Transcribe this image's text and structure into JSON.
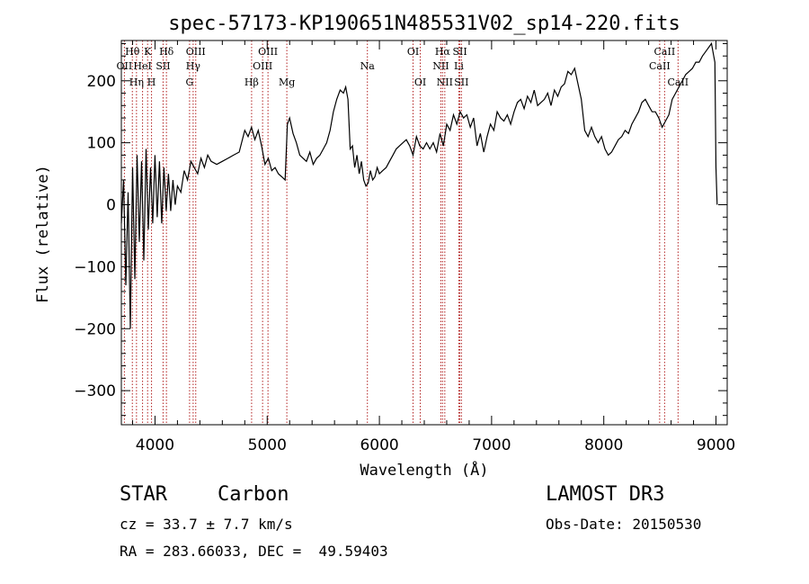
{
  "chart_data": {
    "type": "line",
    "title": "spec-57173-KP190651N485531V02_sp14-220.fits",
    "xlabel": "Wavelength (Å)",
    "ylabel": "Flux (relative)",
    "xlim": [
      3700,
      9100
    ],
    "ylim": [
      -355,
      265
    ],
    "x_ticks": [
      4000,
      5000,
      6000,
      7000,
      8000,
      9000
    ],
    "y_ticks": [
      -300,
      -200,
      -100,
      0,
      100,
      200
    ],
    "grid": false,
    "series": [
      {
        "name": "flux",
        "x": [
          3700,
          3720,
          3740,
          3760,
          3780,
          3800,
          3820,
          3840,
          3860,
          3880,
          3900,
          3920,
          3940,
          3960,
          3980,
          4000,
          4020,
          4040,
          4060,
          4080,
          4100,
          4120,
          4140,
          4160,
          4180,
          4200,
          4230,
          4260,
          4290,
          4320,
          4350,
          4380,
          4410,
          4440,
          4470,
          4500,
          4550,
          4600,
          4650,
          4700,
          4750,
          4800,
          4830,
          4860,
          4890,
          4920,
          4950,
          4980,
          5010,
          5040,
          5070,
          5100,
          5130,
          5160,
          5180,
          5200,
          5230,
          5260,
          5290,
          5320,
          5350,
          5380,
          5410,
          5440,
          5470,
          5500,
          5530,
          5560,
          5590,
          5620,
          5650,
          5680,
          5700,
          5720,
          5740,
          5760,
          5780,
          5800,
          5820,
          5840,
          5860,
          5880,
          5900,
          5920,
          5940,
          5960,
          5980,
          6000,
          6030,
          6060,
          6090,
          6120,
          6150,
          6180,
          6210,
          6240,
          6270,
          6300,
          6330,
          6360,
          6390,
          6420,
          6450,
          6480,
          6510,
          6540,
          6570,
          6600,
          6630,
          6660,
          6690,
          6720,
          6750,
          6780,
          6810,
          6840,
          6870,
          6900,
          6930,
          6960,
          6990,
          7020,
          7050,
          7080,
          7110,
          7140,
          7170,
          7200,
          7230,
          7260,
          7290,
          7320,
          7350,
          7380,
          7410,
          7440,
          7470,
          7500,
          7530,
          7560,
          7590,
          7620,
          7650,
          7680,
          7710,
          7740,
          7770,
          7800,
          7830,
          7860,
          7890,
          7920,
          7950,
          7980,
          8010,
          8040,
          8070,
          8100,
          8130,
          8160,
          8190,
          8220,
          8250,
          8280,
          8310,
          8340,
          8370,
          8400,
          8430,
          8460,
          8490,
          8520,
          8550,
          8580,
          8610,
          8640,
          8670,
          8700,
          8730,
          8760,
          8790,
          8820,
          8850,
          8880,
          8900,
          8920,
          8940,
          8960,
          8980,
          8990,
          9000,
          9010
        ],
        "y": [
          -30,
          40,
          -130,
          20,
          -200,
          60,
          -120,
          80,
          -60,
          70,
          -90,
          90,
          -40,
          60,
          -30,
          80,
          -20,
          70,
          -30,
          60,
          -10,
          50,
          -10,
          40,
          0,
          30,
          20,
          55,
          40,
          70,
          60,
          50,
          75,
          60,
          80,
          70,
          65,
          70,
          75,
          80,
          85,
          120,
          110,
          125,
          105,
          120,
          95,
          65,
          75,
          55,
          60,
          50,
          45,
          40,
          130,
          140,
          115,
          100,
          80,
          75,
          70,
          85,
          65,
          75,
          80,
          90,
          100,
          120,
          150,
          170,
          185,
          180,
          190,
          170,
          90,
          95,
          60,
          80,
          50,
          70,
          40,
          30,
          35,
          55,
          40,
          45,
          60,
          50,
          55,
          60,
          70,
          80,
          90,
          95,
          100,
          105,
          95,
          80,
          110,
          95,
          90,
          100,
          90,
          100,
          85,
          115,
          95,
          130,
          120,
          145,
          130,
          150,
          140,
          145,
          125,
          140,
          95,
          115,
          85,
          110,
          130,
          120,
          150,
          140,
          135,
          145,
          130,
          150,
          165,
          170,
          155,
          175,
          165,
          185,
          160,
          165,
          170,
          180,
          160,
          185,
          175,
          190,
          195,
          215,
          210,
          220,
          195,
          170,
          120,
          110,
          125,
          110,
          100,
          110,
          90,
          80,
          85,
          95,
          105,
          110,
          120,
          115,
          130,
          140,
          150,
          165,
          170,
          160,
          150,
          150,
          140,
          125,
          135,
          145,
          170,
          180,
          190,
          200,
          210,
          215,
          220,
          230,
          230,
          240,
          245,
          250,
          255,
          260,
          240,
          230,
          60,
          0
        ]
      }
    ],
    "spectral_lines": [
      {
        "label": "Hθ",
        "x": 3798,
        "row": 1
      },
      {
        "label": "OII",
        "x": 3727,
        "row": 2
      },
      {
        "label": "Hη",
        "x": 3835,
        "row": 3
      },
      {
        "label": "K",
        "x": 3934,
        "row": 1
      },
      {
        "label": "HeI",
        "x": 3889,
        "row": 2
      },
      {
        "label": "H",
        "x": 3969,
        "row": 3
      },
      {
        "label": "SII",
        "x": 4072,
        "row": 2
      },
      {
        "label": "Hδ",
        "x": 4102,
        "row": 1
      },
      {
        "label": "OIII",
        "x": 4363,
        "row": 1
      },
      {
        "label": "Hγ",
        "x": 4340,
        "row": 2
      },
      {
        "label": "G",
        "x": 4308,
        "row": 3
      },
      {
        "label": "OIII",
        "x": 5007,
        "row": 1
      },
      {
        "label": "OIII",
        "x": 4959,
        "row": 2
      },
      {
        "label": "Hβ",
        "x": 4861,
        "row": 3
      },
      {
        "label": "Mg",
        "x": 5175,
        "row": 3
      },
      {
        "label": "Na",
        "x": 5893,
        "row": 2
      },
      {
        "label": "OI",
        "x": 6300,
        "row": 1
      },
      {
        "label": "OI",
        "x": 6364,
        "row": 3
      },
      {
        "label": "Hα",
        "x": 6563,
        "row": 1
      },
      {
        "label": "NII",
        "x": 6548,
        "row": 2
      },
      {
        "label": "NII",
        "x": 6583,
        "row": 3
      },
      {
        "label": "SII",
        "x": 6717,
        "row": 1
      },
      {
        "label": "Li",
        "x": 6708,
        "row": 2
      },
      {
        "label": "SII",
        "x": 6731,
        "row": 3
      },
      {
        "label": "CaII",
        "x": 8542,
        "row": 1
      },
      {
        "label": "CaII",
        "x": 8498,
        "row": 2
      },
      {
        "label": "CaII",
        "x": 8662,
        "row": 3
      }
    ]
  },
  "info": {
    "class": "STAR",
    "subclass": "Carbon",
    "survey": "LAMOST DR3",
    "cz": "cz = 33.7 ± 7.7 km/s",
    "obs_date": "Obs-Date: 20150530",
    "coords": "RA = 283.66033, DEC =  49.59403"
  },
  "colors": {
    "line": "#000000",
    "marker": "#b22222"
  }
}
